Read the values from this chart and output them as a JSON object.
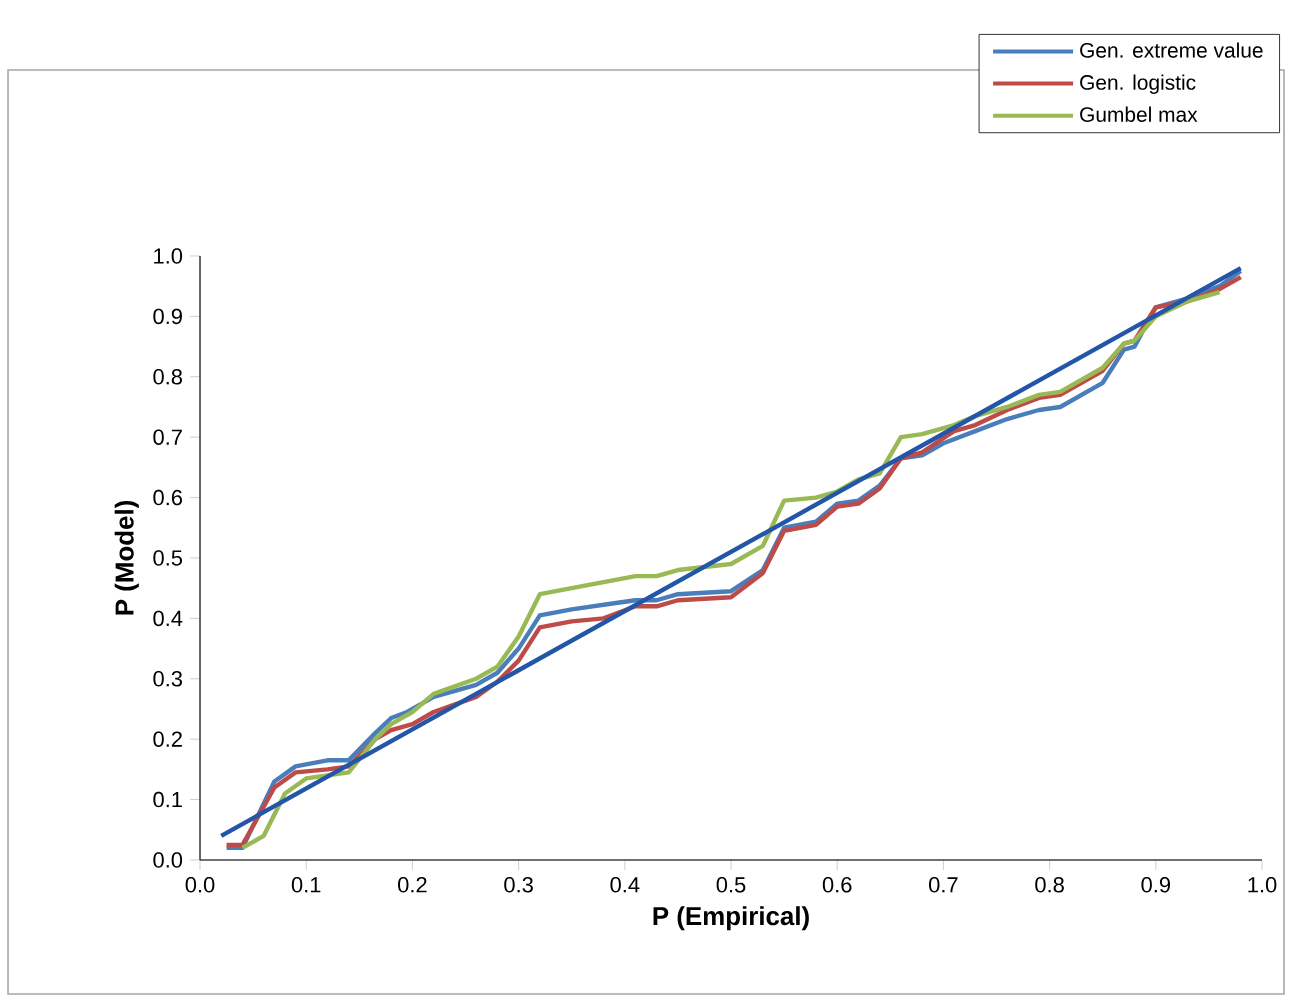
{
  "chart_data": {
    "type": "line",
    "xlabel": "P (Empirical)",
    "ylabel": "P (Model)",
    "xlim": [
      0,
      1
    ],
    "ylim": [
      0,
      1
    ],
    "xticks": [
      {
        "value": 0,
        "label": "0.0"
      },
      {
        "value": 0.1,
        "label": "0.1"
      },
      {
        "value": 0.2,
        "label": "0.2"
      },
      {
        "value": 0.3,
        "label": "0.3"
      },
      {
        "value": 0.4,
        "label": "0.4"
      },
      {
        "value": 0.5,
        "label": "0.5"
      },
      {
        "value": 0.6,
        "label": "0.6"
      },
      {
        "value": 0.7,
        "label": "0.7"
      },
      {
        "value": 0.8,
        "label": "0.8"
      },
      {
        "value": 0.9,
        "label": "0.9"
      },
      {
        "value": 1,
        "label": "1.0"
      }
    ],
    "yticks": [
      {
        "value": 0,
        "label": "0.0"
      },
      {
        "value": 0.1,
        "label": "0.1"
      },
      {
        "value": 0.2,
        "label": "0.2"
      },
      {
        "value": 0.3,
        "label": "0.3"
      },
      {
        "value": 0.4,
        "label": "0.4"
      },
      {
        "value": 0.5,
        "label": "0.5"
      },
      {
        "value": 0.6,
        "label": "0.6"
      },
      {
        "value": 0.7,
        "label": "0.7"
      },
      {
        "value": 0.8,
        "label": "0.8"
      },
      {
        "value": 0.9,
        "label": "0.9"
      },
      {
        "value": 1,
        "label": "1.0"
      }
    ],
    "grid": false,
    "legend": "top right",
    "marker": "none",
    "line_style": "solid",
    "series": [
      {
        "name": "Gen. extreme value",
        "color": "#4a7ebb",
        "x": [
          0.025,
          0.04,
          0.07,
          0.09,
          0.12,
          0.14,
          0.165,
          0.18,
          0.195,
          0.22,
          0.26,
          0.28,
          0.3,
          0.32,
          0.35,
          0.39,
          0.41,
          0.43,
          0.45,
          0.5,
          0.53,
          0.55,
          0.58,
          0.6,
          0.62,
          0.64,
          0.66,
          0.68,
          0.7,
          0.73,
          0.76,
          0.79,
          0.81,
          0.85,
          0.87,
          0.88,
          0.9,
          0.93,
          0.96,
          0.98
        ],
        "values": [
          0.02,
          0.02,
          0.13,
          0.155,
          0.165,
          0.165,
          0.21,
          0.235,
          0.245,
          0.27,
          0.29,
          0.31,
          0.35,
          0.405,
          0.415,
          0.425,
          0.43,
          0.43,
          0.44,
          0.445,
          0.48,
          0.55,
          0.56,
          0.59,
          0.595,
          0.62,
          0.665,
          0.67,
          0.69,
          0.71,
          0.73,
          0.745,
          0.75,
          0.79,
          0.845,
          0.85,
          0.915,
          0.93,
          0.95,
          0.975
        ]
      },
      {
        "name": "Gen. logistic",
        "color": "#be4b48",
        "x": [
          0.025,
          0.04,
          0.07,
          0.09,
          0.12,
          0.14,
          0.165,
          0.18,
          0.2,
          0.22,
          0.26,
          0.28,
          0.3,
          0.32,
          0.35,
          0.38,
          0.41,
          0.43,
          0.45,
          0.5,
          0.53,
          0.55,
          0.58,
          0.6,
          0.62,
          0.64,
          0.66,
          0.68,
          0.71,
          0.73,
          0.76,
          0.79,
          0.81,
          0.85,
          0.87,
          0.88,
          0.9,
          0.93,
          0.96,
          0.98
        ],
        "values": [
          0.025,
          0.025,
          0.12,
          0.145,
          0.15,
          0.155,
          0.2,
          0.215,
          0.225,
          0.245,
          0.27,
          0.295,
          0.33,
          0.385,
          0.395,
          0.4,
          0.42,
          0.42,
          0.43,
          0.435,
          0.475,
          0.545,
          0.555,
          0.585,
          0.59,
          0.615,
          0.665,
          0.675,
          0.71,
          0.72,
          0.745,
          0.765,
          0.77,
          0.81,
          0.855,
          0.86,
          0.915,
          0.925,
          0.945,
          0.965
        ]
      },
      {
        "name": "Gumbel max",
        "color": "#98b954",
        "x": [
          0.04,
          0.06,
          0.08,
          0.1,
          0.12,
          0.14,
          0.165,
          0.18,
          0.2,
          0.22,
          0.26,
          0.28,
          0.3,
          0.32,
          0.35,
          0.38,
          0.41,
          0.43,
          0.45,
          0.5,
          0.53,
          0.55,
          0.58,
          0.6,
          0.62,
          0.64,
          0.66,
          0.68,
          0.71,
          0.73,
          0.76,
          0.79,
          0.81,
          0.85,
          0.87,
          0.88,
          0.9,
          0.93,
          0.96
        ],
        "values": [
          0.02,
          0.04,
          0.11,
          0.135,
          0.14,
          0.145,
          0.2,
          0.225,
          0.245,
          0.275,
          0.3,
          0.32,
          0.37,
          0.44,
          0.45,
          0.46,
          0.47,
          0.47,
          0.48,
          0.49,
          0.52,
          0.595,
          0.6,
          0.61,
          0.63,
          0.64,
          0.7,
          0.705,
          0.72,
          0.735,
          0.75,
          0.77,
          0.775,
          0.815,
          0.855,
          0.86,
          0.9,
          0.925,
          0.94
        ]
      },
      {
        "color": "#2456a8",
        "x": [
          0.02,
          0.98
        ],
        "values": [
          0.04,
          0.98
        ]
      }
    ]
  }
}
